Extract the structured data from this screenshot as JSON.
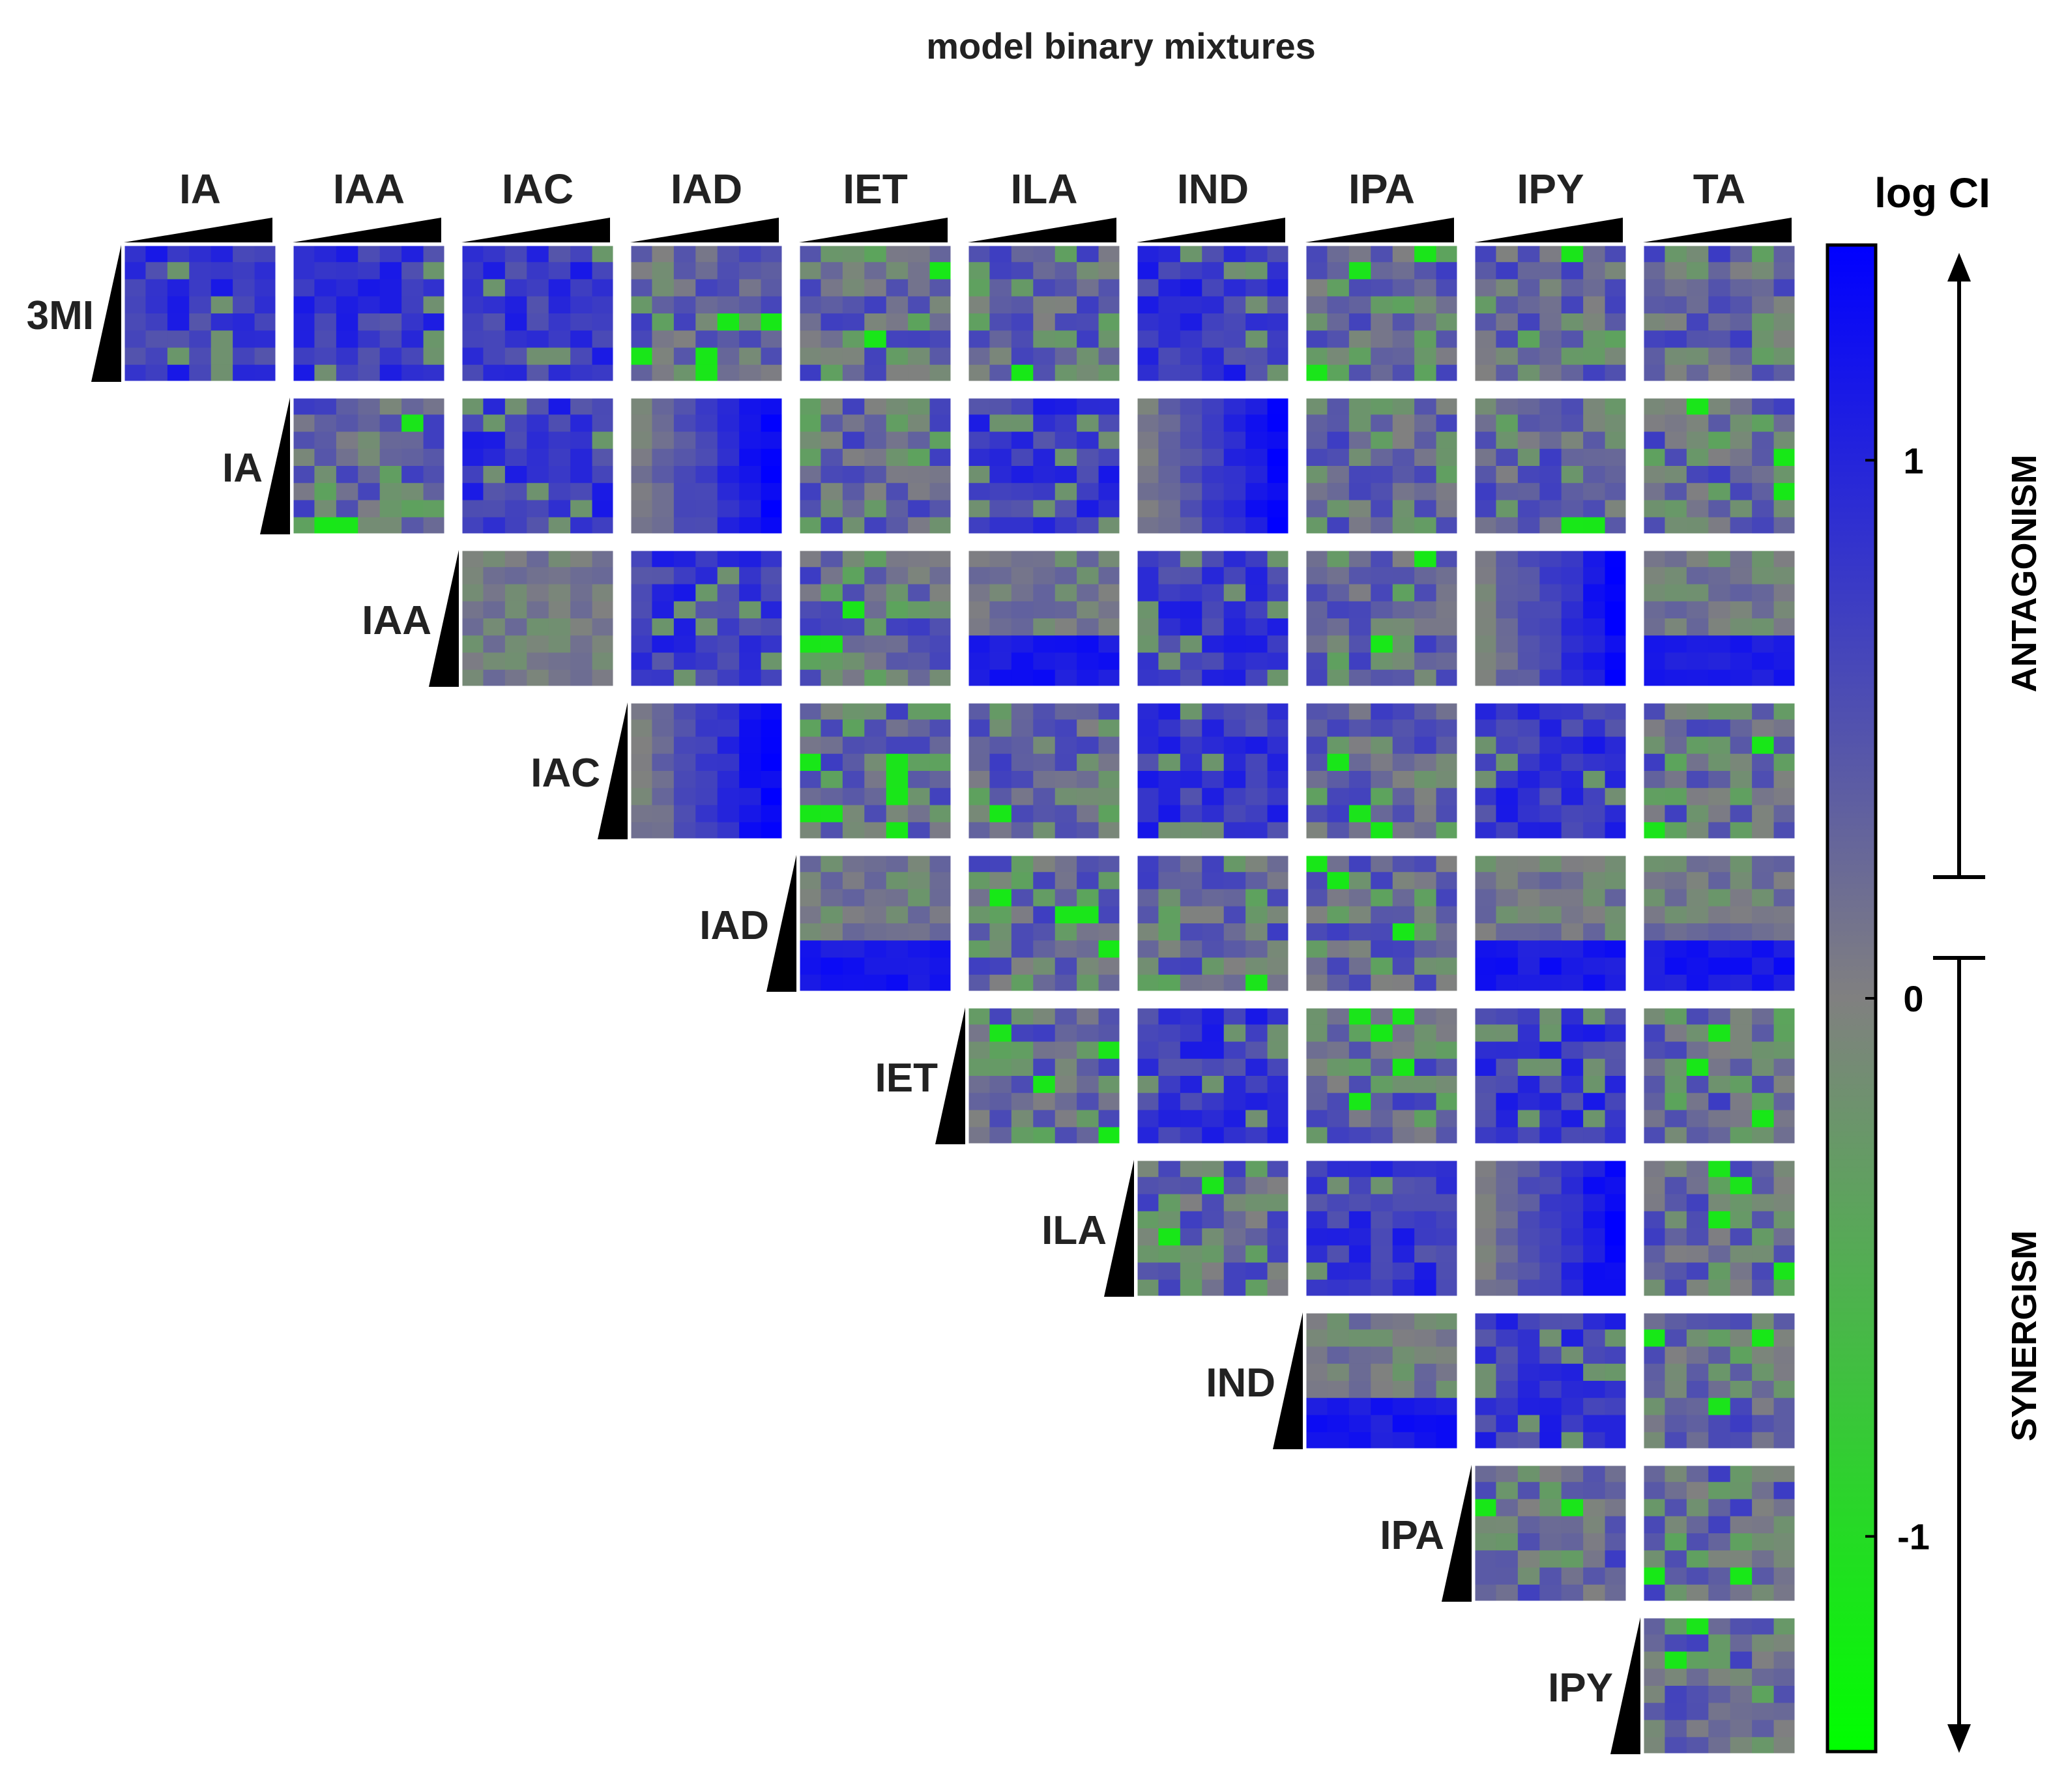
{
  "chart_data": {
    "type": "heatmap",
    "title": "model binary mixtures",
    "column_labels": [
      "IA",
      "IAA",
      "IAC",
      "IAD",
      "IET",
      "ILA",
      "IND",
      "IPA",
      "IPY",
      "TA"
    ],
    "row_labels": [
      "3MI",
      "IA",
      "IAA",
      "IAC",
      "IAD",
      "IET",
      "ILA",
      "IND",
      "IPA",
      "IPY"
    ],
    "cells_per_panel": [
      7,
      8
    ],
    "value_range": [
      -1.4,
      1.4
    ],
    "panels": [
      {
        "row": "3MI",
        "col": "IA",
        "dominant": "blue"
      },
      {
        "row": "3MI",
        "col": "IAA",
        "dominant": "blue"
      },
      {
        "row": "3MI",
        "col": "IAC",
        "dominant": "blue"
      },
      {
        "row": "3MI",
        "col": "IAD",
        "dominant": "mixed"
      },
      {
        "row": "3MI",
        "col": "IET",
        "dominant": "mixed"
      },
      {
        "row": "3MI",
        "col": "ILA",
        "dominant": "mixed"
      },
      {
        "row": "3MI",
        "col": "IND",
        "dominant": "blue"
      },
      {
        "row": "3MI",
        "col": "IPA",
        "dominant": "mixed"
      },
      {
        "row": "3MI",
        "col": "IPY",
        "dominant": "mixed"
      },
      {
        "row": "3MI",
        "col": "TA",
        "dominant": "mixed"
      },
      {
        "row": "IA",
        "col": "IAA",
        "dominant": "mixed"
      },
      {
        "row": "IA",
        "col": "IAC",
        "dominant": "blue"
      },
      {
        "row": "IA",
        "col": "IAD",
        "dominant": "blue-right"
      },
      {
        "row": "IA",
        "col": "IET",
        "dominant": "mixed"
      },
      {
        "row": "IA",
        "col": "ILA",
        "dominant": "blue"
      },
      {
        "row": "IA",
        "col": "IND",
        "dominant": "blue-right"
      },
      {
        "row": "IA",
        "col": "IPA",
        "dominant": "mixed"
      },
      {
        "row": "IA",
        "col": "IPY",
        "dominant": "mixed"
      },
      {
        "row": "IA",
        "col": "TA",
        "dominant": "mixed"
      },
      {
        "row": "IAA",
        "col": "IAC",
        "dominant": "grey"
      },
      {
        "row": "IAA",
        "col": "IAD",
        "dominant": "blue"
      },
      {
        "row": "IAA",
        "col": "IET",
        "dominant": "mixed"
      },
      {
        "row": "IAA",
        "col": "ILA",
        "dominant": "blue-bottom"
      },
      {
        "row": "IAA",
        "col": "IND",
        "dominant": "blue"
      },
      {
        "row": "IAA",
        "col": "IPA",
        "dominant": "mixed"
      },
      {
        "row": "IAA",
        "col": "IPY",
        "dominant": "blue-right"
      },
      {
        "row": "IAA",
        "col": "TA",
        "dominant": "blue-bottom"
      },
      {
        "row": "IAC",
        "col": "IAD",
        "dominant": "blue-right"
      },
      {
        "row": "IAC",
        "col": "IET",
        "dominant": "mixed"
      },
      {
        "row": "IAC",
        "col": "ILA",
        "dominant": "mixed"
      },
      {
        "row": "IAC",
        "col": "IND",
        "dominant": "blue"
      },
      {
        "row": "IAC",
        "col": "IPA",
        "dominant": "mixed"
      },
      {
        "row": "IAC",
        "col": "IPY",
        "dominant": "blue"
      },
      {
        "row": "IAC",
        "col": "TA",
        "dominant": "mixed"
      },
      {
        "row": "IAD",
        "col": "IET",
        "dominant": "blue-bottom"
      },
      {
        "row": "IAD",
        "col": "ILA",
        "dominant": "mixed"
      },
      {
        "row": "IAD",
        "col": "IND",
        "dominant": "mixed"
      },
      {
        "row": "IAD",
        "col": "IPA",
        "dominant": "mixed"
      },
      {
        "row": "IAD",
        "col": "IPY",
        "dominant": "blue-bottom"
      },
      {
        "row": "IAD",
        "col": "TA",
        "dominant": "blue-bottom"
      },
      {
        "row": "IET",
        "col": "ILA",
        "dominant": "mixed"
      },
      {
        "row": "IET",
        "col": "IND",
        "dominant": "blue"
      },
      {
        "row": "IET",
        "col": "IPA",
        "dominant": "mixed"
      },
      {
        "row": "IET",
        "col": "IPY",
        "dominant": "blue"
      },
      {
        "row": "IET",
        "col": "TA",
        "dominant": "mixed"
      },
      {
        "row": "ILA",
        "col": "IND",
        "dominant": "mixed"
      },
      {
        "row": "ILA",
        "col": "IPA",
        "dominant": "blue"
      },
      {
        "row": "ILA",
        "col": "IPY",
        "dominant": "blue-right"
      },
      {
        "row": "ILA",
        "col": "TA",
        "dominant": "mixed"
      },
      {
        "row": "IND",
        "col": "IPA",
        "dominant": "blue-bottom"
      },
      {
        "row": "IND",
        "col": "IPY",
        "dominant": "blue"
      },
      {
        "row": "IND",
        "col": "TA",
        "dominant": "mixed"
      },
      {
        "row": "IPA",
        "col": "IPY",
        "dominant": "mixed"
      },
      {
        "row": "IPA",
        "col": "TA",
        "dominant": "mixed"
      },
      {
        "row": "IPY",
        "col": "TA",
        "dominant": "mixed"
      }
    ],
    "colorbar": {
      "label": "log CI",
      "ticks": [
        "1",
        "0",
        "-1"
      ],
      "tick_values": [
        1,
        0,
        -1
      ],
      "colors": {
        "max": "#0000ff",
        "mid": "#808080",
        "min": "#00ff00"
      }
    },
    "annotations": {
      "upper": "ANTAGONISM",
      "lower": "SYNERGISM"
    }
  }
}
